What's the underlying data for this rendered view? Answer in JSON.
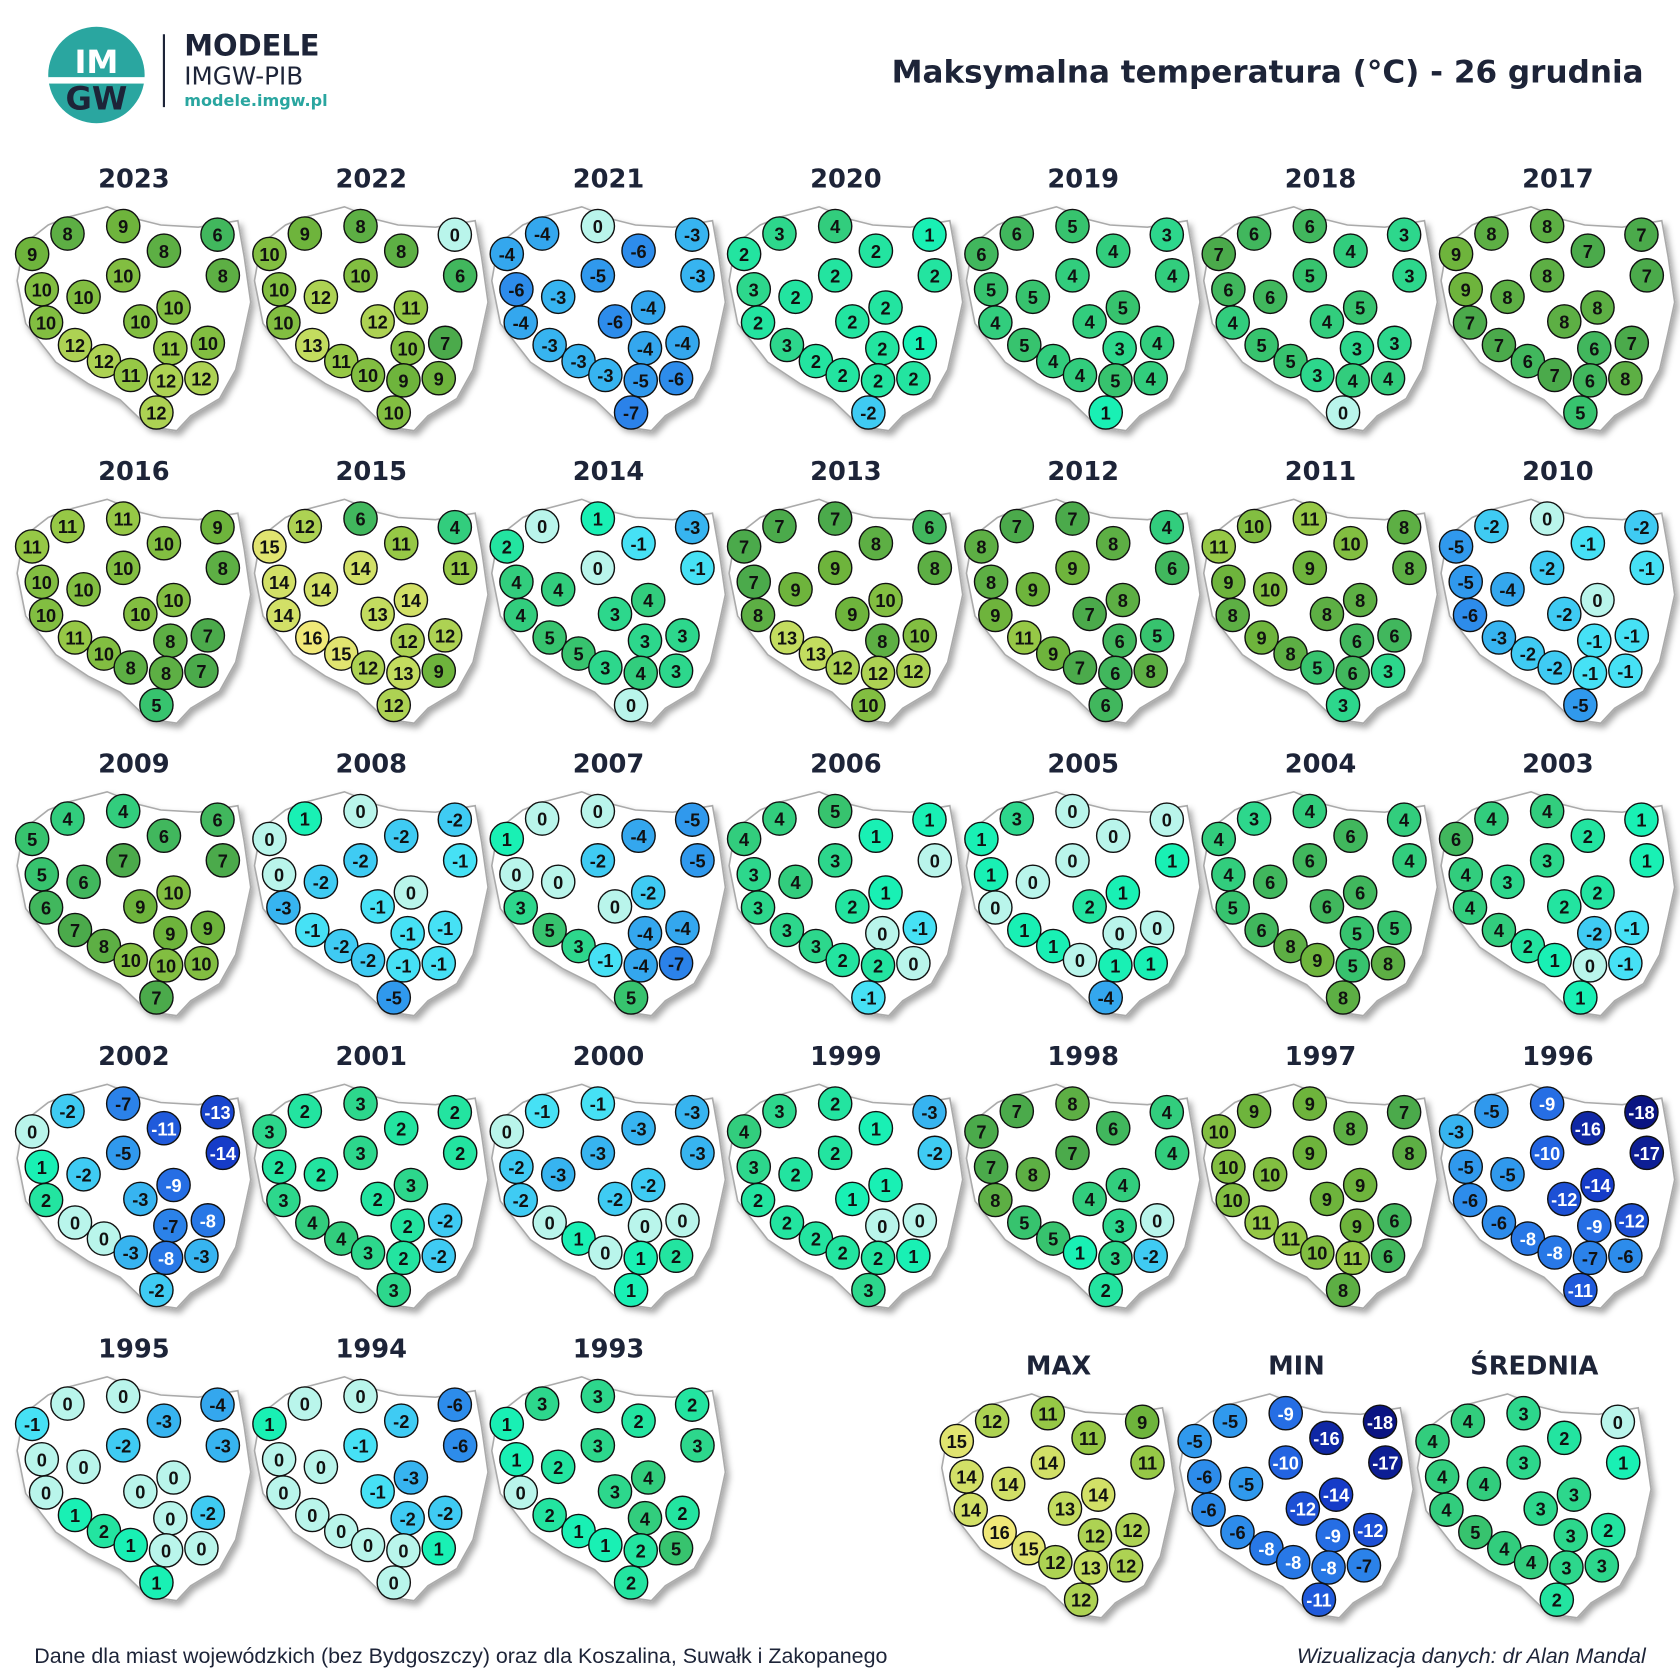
{
  "header": {
    "logo_top": "IM",
    "logo_bottom": "GW",
    "brand": "MODELE",
    "brand_sub": "IMGW-PIB",
    "url": "modele.imgw.pl",
    "title": "Maksymalna temperatura (°C) - 26 grudnia"
  },
  "maps": [
    {
      "label": "2023",
      "values": [
        9,
        8,
        9,
        8,
        6,
        8,
        10,
        10,
        10,
        10,
        10,
        10,
        12,
        11,
        10,
        12,
        11,
        12,
        12,
        12
      ]
    },
    {
      "label": "2022",
      "values": [
        10,
        9,
        8,
        8,
        0,
        6,
        10,
        12,
        10,
        10,
        12,
        11,
        13,
        10,
        7,
        11,
        10,
        9,
        9,
        10
      ]
    },
    {
      "label": "2021",
      "values": [
        -4,
        -4,
        0,
        -6,
        -3,
        -3,
        -6,
        -3,
        -5,
        -4,
        -6,
        -4,
        -3,
        -4,
        -4,
        -3,
        -3,
        -5,
        -6,
        -7
      ]
    },
    {
      "label": "2020",
      "values": [
        2,
        3,
        4,
        2,
        1,
        2,
        3,
        2,
        2,
        2,
        2,
        2,
        3,
        2,
        1,
        2,
        2,
        2,
        2,
        -2
      ]
    },
    {
      "label": "2019",
      "values": [
        6,
        6,
        5,
        4,
        3,
        4,
        5,
        5,
        4,
        4,
        4,
        5,
        5,
        3,
        4,
        4,
        4,
        5,
        4,
        1
      ]
    },
    {
      "label": "2018",
      "values": [
        7,
        6,
        6,
        4,
        3,
        3,
        6,
        6,
        5,
        4,
        4,
        5,
        5,
        3,
        3,
        5,
        3,
        4,
        4,
        0
      ]
    },
    {
      "label": "2017",
      "values": [
        9,
        8,
        8,
        7,
        7,
        7,
        9,
        8,
        8,
        7,
        8,
        8,
        7,
        6,
        7,
        6,
        7,
        6,
        8,
        5
      ]
    },
    {
      "label": "2016",
      "values": [
        11,
        11,
        11,
        10,
        9,
        8,
        10,
        10,
        10,
        10,
        10,
        10,
        11,
        8,
        7,
        10,
        8,
        8,
        7,
        5
      ]
    },
    {
      "label": "2015",
      "values": [
        15,
        12,
        6,
        11,
        4,
        11,
        14,
        14,
        14,
        14,
        13,
        14,
        16,
        12,
        12,
        15,
        12,
        13,
        9,
        12
      ]
    },
    {
      "label": "2014",
      "values": [
        2,
        0,
        1,
        -1,
        -3,
        -1,
        4,
        4,
        0,
        4,
        3,
        4,
        5,
        3,
        3,
        5,
        3,
        4,
        3,
        0
      ]
    },
    {
      "label": "2013",
      "values": [
        7,
        7,
        7,
        8,
        6,
        8,
        7,
        9,
        9,
        8,
        9,
        10,
        13,
        8,
        10,
        13,
        12,
        12,
        12,
        10
      ]
    },
    {
      "label": "2012",
      "values": [
        8,
        7,
        7,
        8,
        4,
        6,
        8,
        9,
        9,
        9,
        7,
        8,
        11,
        6,
        5,
        9,
        7,
        6,
        8,
        6
      ]
    },
    {
      "label": "2011",
      "values": [
        11,
        10,
        11,
        10,
        8,
        8,
        9,
        10,
        9,
        8,
        8,
        8,
        9,
        6,
        6,
        8,
        5,
        6,
        3,
        3
      ]
    },
    {
      "label": "2010",
      "values": [
        -5,
        -2,
        0,
        -1,
        -2,
        -1,
        -5,
        -4,
        -2,
        -6,
        -2,
        0,
        -3,
        -1,
        -1,
        -2,
        -2,
        -1,
        -1,
        -5
      ]
    },
    {
      "label": "2009",
      "values": [
        5,
        4,
        4,
        6,
        6,
        7,
        5,
        6,
        7,
        6,
        9,
        10,
        7,
        9,
        9,
        8,
        10,
        10,
        10,
        7
      ]
    },
    {
      "label": "2008",
      "values": [
        0,
        1,
        0,
        -2,
        -2,
        -1,
        0,
        -2,
        -2,
        -3,
        -1,
        0,
        -1,
        -1,
        -1,
        -2,
        -2,
        -1,
        -1,
        -5
      ]
    },
    {
      "label": "2007",
      "values": [
        1,
        0,
        0,
        -4,
        -5,
        -5,
        0,
        0,
        -2,
        3,
        0,
        -2,
        5,
        -4,
        -4,
        3,
        -1,
        -4,
        -7,
        5
      ]
    },
    {
      "label": "2006",
      "values": [
        4,
        4,
        5,
        1,
        1,
        0,
        3,
        4,
        3,
        3,
        2,
        1,
        3,
        0,
        -1,
        3,
        2,
        2,
        0,
        -1
      ]
    },
    {
      "label": "2005",
      "values": [
        1,
        3,
        0,
        0,
        0,
        1,
        1,
        0,
        0,
        0,
        2,
        1,
        1,
        0,
        0,
        1,
        0,
        1,
        1,
        -4
      ]
    },
    {
      "label": "2004",
      "values": [
        4,
        3,
        4,
        6,
        4,
        4,
        4,
        6,
        6,
        5,
        6,
        6,
        6,
        5,
        5,
        8,
        9,
        5,
        8,
        8
      ]
    },
    {
      "label": "2003",
      "values": [
        6,
        4,
        4,
        2,
        1,
        1,
        4,
        3,
        3,
        4,
        2,
        2,
        4,
        -2,
        -1,
        2,
        1,
        0,
        -1,
        1
      ]
    },
    {
      "label": "2002",
      "values": [
        0,
        -2,
        -7,
        -11,
        -13,
        -14,
        1,
        -2,
        -5,
        2,
        -3,
        -9,
        0,
        -7,
        -8,
        0,
        -3,
        -8,
        -3,
        -2
      ]
    },
    {
      "label": "2001",
      "values": [
        3,
        2,
        3,
        2,
        2,
        2,
        2,
        2,
        3,
        3,
        2,
        3,
        4,
        2,
        -2,
        4,
        3,
        2,
        -2,
        3
      ]
    },
    {
      "label": "2000",
      "values": [
        0,
        -1,
        -1,
        -3,
        -3,
        -3,
        -2,
        -3,
        -3,
        -2,
        -2,
        -2,
        0,
        0,
        0,
        1,
        0,
        1,
        2,
        1
      ]
    },
    {
      "label": "1999",
      "values": [
        4,
        3,
        2,
        1,
        -3,
        -2,
        3,
        2,
        2,
        2,
        1,
        1,
        2,
        0,
        0,
        2,
        2,
        2,
        1,
        3
      ]
    },
    {
      "label": "1998",
      "values": [
        7,
        7,
        8,
        6,
        4,
        4,
        7,
        8,
        7,
        8,
        4,
        4,
        5,
        3,
        0,
        5,
        1,
        3,
        -2,
        2
      ]
    },
    {
      "label": "1997",
      "values": [
        10,
        9,
        9,
        8,
        7,
        8,
        10,
        10,
        9,
        10,
        9,
        9,
        11,
        9,
        6,
        11,
        10,
        11,
        6,
        8
      ]
    },
    {
      "label": "1996",
      "values": [
        -3,
        -5,
        -9,
        -16,
        -18,
        -17,
        -5,
        -5,
        -10,
        -6,
        -12,
        -14,
        -6,
        -9,
        -12,
        -8,
        -8,
        -7,
        -6,
        -11
      ]
    },
    {
      "label": "1995",
      "values": [
        -1,
        0,
        0,
        -3,
        -4,
        -3,
        0,
        0,
        -2,
        0,
        0,
        0,
        1,
        0,
        -2,
        2,
        1,
        0,
        0,
        1
      ]
    },
    {
      "label": "1994",
      "values": [
        1,
        0,
        0,
        -2,
        -6,
        -6,
        0,
        0,
        -1,
        0,
        -1,
        -3,
        0,
        -2,
        -2,
        0,
        0,
        0,
        1,
        0
      ]
    },
    {
      "label": "1993",
      "values": [
        1,
        3,
        3,
        2,
        2,
        3,
        1,
        2,
        3,
        0,
        3,
        4,
        2,
        4,
        2,
        1,
        1,
        2,
        5,
        2
      ]
    },
    {
      "label": "MAX",
      "values": [
        15,
        12,
        11,
        11,
        9,
        11,
        14,
        14,
        14,
        14,
        13,
        14,
        16,
        12,
        12,
        15,
        12,
        13,
        12,
        12
      ]
    },
    {
      "label": "MIN",
      "values": [
        -5,
        -5,
        -9,
        -16,
        -18,
        -17,
        -6,
        -5,
        -10,
        -6,
        -12,
        -14,
        -6,
        -9,
        -12,
        -8,
        -8,
        -8,
        -7,
        -11
      ]
    },
    {
      "label": "ŚREDNIA",
      "values": [
        4,
        4,
        3,
        2,
        0,
        1,
        4,
        4,
        3,
        4,
        3,
        3,
        5,
        3,
        2,
        4,
        4,
        3,
        3,
        2
      ]
    }
  ],
  "footer": {
    "left": "Dane dla miast wojewódzkich (bez Bydgoszczy) oraz dla Koszalina, Suwałk i Zakopanego",
    "right": "Wizualizacja danych: dr Alan Mandal"
  }
}
